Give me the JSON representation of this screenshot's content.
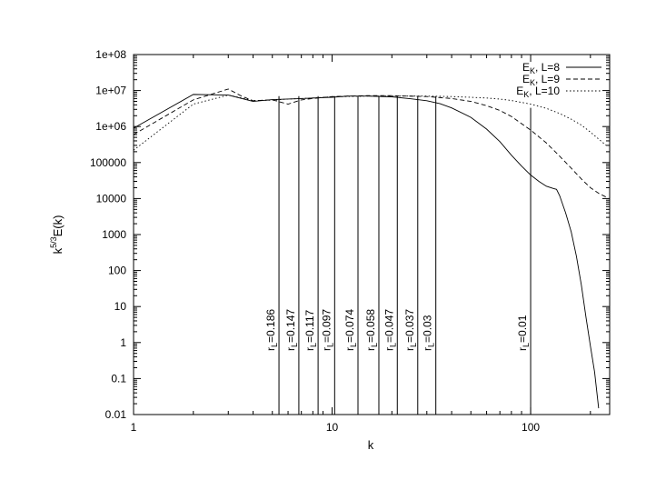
{
  "chart_data": {
    "type": "line",
    "title": "",
    "xlabel": "k",
    "ylabel_parts": {
      "base": "k",
      "sup": "5/3",
      "rest": "E(k)"
    },
    "x_scale": "log",
    "y_scale": "log",
    "xlim": [
      1,
      250
    ],
    "ylim": [
      0.01,
      100000000
    ],
    "grid": false,
    "legend_position": "top-right",
    "x_ticks": [
      {
        "value": 1,
        "label": "1"
      },
      {
        "value": 10,
        "label": "10"
      },
      {
        "value": 100,
        "label": "100"
      }
    ],
    "y_ticks": [
      {
        "value": 0.01,
        "label": "0.01"
      },
      {
        "value": 0.1,
        "label": "0.1"
      },
      {
        "value": 1,
        "label": "1"
      },
      {
        "value": 10,
        "label": "10"
      },
      {
        "value": 100,
        "label": "100"
      },
      {
        "value": 1000,
        "label": "1000"
      },
      {
        "value": 10000,
        "label": "10000"
      },
      {
        "value": 100000,
        "label": "100000"
      },
      {
        "value": 1000000,
        "label": "1e+06"
      },
      {
        "value": 10000000,
        "label": "1e+07"
      },
      {
        "value": 100000000,
        "label": "1e+08"
      }
    ],
    "series": [
      {
        "legend": {
          "base": "E",
          "sub": "K",
          "rest": ", L=8"
        },
        "style": "solid",
        "points": [
          [
            1,
            900000
          ],
          [
            2,
            7800000
          ],
          [
            3,
            7500000
          ],
          [
            4,
            5000000
          ],
          [
            5,
            5600000
          ],
          [
            6,
            5800000
          ],
          [
            7,
            6000000
          ],
          [
            8,
            6200000
          ],
          [
            10,
            6500000
          ],
          [
            12,
            7000000
          ],
          [
            15,
            7000000
          ],
          [
            20,
            6700000
          ],
          [
            25,
            5900000
          ],
          [
            30,
            5200000
          ],
          [
            35,
            4300000
          ],
          [
            40,
            3300000
          ],
          [
            50,
            1800000
          ],
          [
            60,
            850000
          ],
          [
            70,
            380000
          ],
          [
            80,
            160000
          ],
          [
            90,
            80000
          ],
          [
            100,
            45000
          ],
          [
            110,
            30000
          ],
          [
            120,
            22000
          ],
          [
            130,
            19000
          ],
          [
            135,
            18000
          ],
          [
            140,
            12000
          ],
          [
            150,
            4000
          ],
          [
            160,
            1200
          ],
          [
            170,
            250
          ],
          [
            180,
            40
          ],
          [
            190,
            5
          ],
          [
            200,
            0.8
          ],
          [
            210,
            0.15
          ],
          [
            220,
            0.015
          ]
        ]
      },
      {
        "legend": {
          "base": "E",
          "sub": "K",
          "rest": ", L=9"
        },
        "style": "dashed",
        "points": [
          [
            1,
            600000
          ],
          [
            2,
            5500000
          ],
          [
            3,
            11000000
          ],
          [
            3.5,
            7000000
          ],
          [
            4,
            5200000
          ],
          [
            5,
            5500000
          ],
          [
            6,
            4200000
          ],
          [
            7,
            5500000
          ],
          [
            8,
            6000000
          ],
          [
            10,
            6800000
          ],
          [
            12,
            7000000
          ],
          [
            15,
            7200000
          ],
          [
            20,
            7200000
          ],
          [
            30,
            6800000
          ],
          [
            40,
            6000000
          ],
          [
            50,
            5000000
          ],
          [
            60,
            3800000
          ],
          [
            70,
            2800000
          ],
          [
            80,
            1900000
          ],
          [
            100,
            800000
          ],
          [
            120,
            350000
          ],
          [
            140,
            150000
          ],
          [
            160,
            70000
          ],
          [
            180,
            35000
          ],
          [
            200,
            20000
          ],
          [
            220,
            14000
          ],
          [
            240,
            11000
          ]
        ]
      },
      {
        "legend": {
          "base": "E",
          "sub": "K",
          "rest": ", L=10"
        },
        "style": "dotted",
        "points": [
          [
            1,
            220000
          ],
          [
            2,
            4200000
          ],
          [
            3,
            7500000
          ],
          [
            4,
            5300000
          ],
          [
            5,
            5400000
          ],
          [
            6,
            5800000
          ],
          [
            8,
            6200000
          ],
          [
            10,
            6700000
          ],
          [
            15,
            7000000
          ],
          [
            20,
            7000000
          ],
          [
            30,
            7000000
          ],
          [
            40,
            6800000
          ],
          [
            50,
            6500000
          ],
          [
            60,
            6200000
          ],
          [
            70,
            5800000
          ],
          [
            80,
            5300000
          ],
          [
            100,
            4200000
          ],
          [
            120,
            3200000
          ],
          [
            140,
            2300000
          ],
          [
            160,
            1600000
          ],
          [
            180,
            1100000
          ],
          [
            200,
            700000
          ],
          [
            220,
            450000
          ],
          [
            240,
            300000
          ]
        ]
      }
    ],
    "vertical_lines": [
      {
        "k": 5.4,
        "label_base": "r",
        "label_sub": "L",
        "label_rest": "=0.186"
      },
      {
        "k": 6.8,
        "label_base": "r",
        "label_sub": "L",
        "label_rest": "=0.147"
      },
      {
        "k": 8.5,
        "label_base": "r",
        "label_sub": "L",
        "label_rest": "=0.117"
      },
      {
        "k": 10.3,
        "label_base": "r",
        "label_sub": "L",
        "label_rest": "=0.097"
      },
      {
        "k": 13.5,
        "label_base": "r",
        "label_sub": "L",
        "label_rest": "=0.074"
      },
      {
        "k": 17.2,
        "label_base": "r",
        "label_sub": "L",
        "label_rest": "=0.058"
      },
      {
        "k": 21.3,
        "label_base": "r",
        "label_sub": "L",
        "label_rest": "=0.047"
      },
      {
        "k": 27.0,
        "label_base": "r",
        "label_sub": "L",
        "label_rest": "=0.037"
      },
      {
        "k": 33.3,
        "label_base": "r",
        "label_sub": "L",
        "label_rest": "=0.03"
      },
      {
        "k": 100,
        "label_base": "r",
        "label_sub": "L",
        "label_rest": "=0.01"
      }
    ]
  }
}
